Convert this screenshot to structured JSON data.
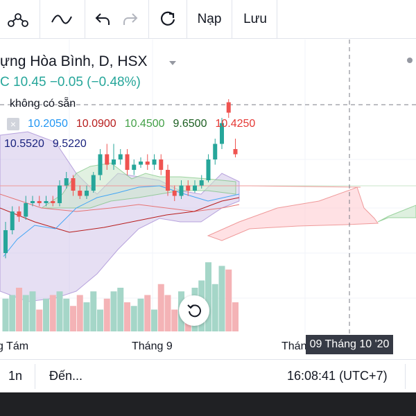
{
  "toolbar": {
    "items": [
      {
        "name": "indicators-icon"
      },
      {
        "name": "drawing-wave-icon"
      },
      {
        "name": "undo-icon"
      },
      {
        "name": "redo-icon"
      },
      {
        "name": "refresh-icon"
      }
    ],
    "load_label": "Nạp",
    "save_label": "Lưu"
  },
  "legend": {
    "title": "ựng Hòa Bình, D, HSX",
    "price_row": "C 10.45  −0.05 (−0.48%)",
    "unavailable": "không có sẵn",
    "row1": [
      {
        "value": "10.2050",
        "color": "#2196f3"
      },
      {
        "value": "10.0900",
        "color": "#b71c1c"
      },
      {
        "value": "10.4500",
        "color": "#43a047"
      },
      {
        "value": "9.6500",
        "color": "#1b5e20"
      },
      {
        "value": "10.4250",
        "color": "#e53935"
      }
    ],
    "row2": [
      {
        "value": "10.5520",
        "color": "#1a237e"
      },
      {
        "value": "9.5220",
        "color": "#1a237e"
      }
    ]
  },
  "time_axis": {
    "labels": [
      "g Tám",
      "Tháng 9",
      "Thán"
    ],
    "crosshair_label": "09 Tháng 10 '20"
  },
  "bottom_bar": {
    "interval": "1n",
    "goto": "Đến...",
    "clock": "16:08:41 (UTC+7)"
  },
  "colors": {
    "up": "#26a69a",
    "down": "#ef5350",
    "volume_up": "#a5d6c8",
    "volume_down": "#f4b3b6",
    "bollinger_fill": "#d1c4e9"
  },
  "chart_data": {
    "type": "candlestick",
    "candles": [
      {
        "o": 9.5,
        "c": 9.72,
        "h": 9.8,
        "l": 9.45
      },
      {
        "o": 9.72,
        "c": 9.9,
        "h": 9.95,
        "l": 9.68
      },
      {
        "o": 9.9,
        "c": 9.85,
        "h": 9.95,
        "l": 9.8
      },
      {
        "o": 9.85,
        "c": 9.98,
        "h": 10.05,
        "l": 9.82
      },
      {
        "o": 9.98,
        "c": 10.0,
        "h": 10.05,
        "l": 9.95
      },
      {
        "o": 10.0,
        "c": 9.98,
        "h": 10.05,
        "l": 9.95
      },
      {
        "o": 9.98,
        "c": 10.0,
        "h": 10.05,
        "l": 9.95
      },
      {
        "o": 10.0,
        "c": 9.98,
        "h": 10.05,
        "l": 9.95
      },
      {
        "o": 9.98,
        "c": 10.15,
        "h": 10.2,
        "l": 9.95
      },
      {
        "o": 10.15,
        "c": 10.22,
        "h": 10.28,
        "l": 10.12
      },
      {
        "o": 10.22,
        "c": 10.1,
        "h": 10.25,
        "l": 10.05
      },
      {
        "o": 10.1,
        "c": 10.05,
        "h": 10.15,
        "l": 10.02
      },
      {
        "o": 10.05,
        "c": 10.1,
        "h": 10.15,
        "l": 10.02
      },
      {
        "o": 10.1,
        "c": 10.25,
        "h": 10.28,
        "l": 10.08
      },
      {
        "o": 10.25,
        "c": 10.45,
        "h": 10.5,
        "l": 10.2
      },
      {
        "o": 10.45,
        "c": 10.35,
        "h": 10.55,
        "l": 10.3
      },
      {
        "o": 10.35,
        "c": 10.4,
        "h": 10.55,
        "l": 10.3
      },
      {
        "o": 10.4,
        "c": 10.45,
        "h": 10.5,
        "l": 10.35
      },
      {
        "o": 10.45,
        "c": 10.3,
        "h": 10.5,
        "l": 10.25
      },
      {
        "o": 10.3,
        "c": 10.35,
        "h": 10.4,
        "l": 10.25
      },
      {
        "o": 10.35,
        "c": 10.38,
        "h": 10.42,
        "l": 10.32
      },
      {
        "o": 10.38,
        "c": 10.35,
        "h": 10.45,
        "l": 10.3
      },
      {
        "o": 10.35,
        "c": 10.4,
        "h": 10.45,
        "l": 10.3
      },
      {
        "o": 10.4,
        "c": 10.3,
        "h": 10.45,
        "l": 10.25
      },
      {
        "o": 10.3,
        "c": 10.1,
        "h": 10.35,
        "l": 10.05
      },
      {
        "o": 10.1,
        "c": 10.05,
        "h": 10.15,
        "l": 10.0
      },
      {
        "o": 10.05,
        "c": 10.15,
        "h": 10.2,
        "l": 10.02
      },
      {
        "o": 10.15,
        "c": 10.1,
        "h": 10.2,
        "l": 10.05
      },
      {
        "o": 10.1,
        "c": 10.15,
        "h": 10.2,
        "l": 10.08
      },
      {
        "o": 10.15,
        "c": 10.2,
        "h": 10.25,
        "l": 10.12
      },
      {
        "o": 10.2,
        "c": 10.4,
        "h": 10.45,
        "l": 10.18
      },
      {
        "o": 10.4,
        "c": 10.55,
        "h": 10.6,
        "l": 10.35
      },
      {
        "o": 10.55,
        "c": 10.75,
        "h": 10.8,
        "l": 10.5
      },
      {
        "o": 10.95,
        "c": 10.85,
        "h": 10.98,
        "l": 10.8
      },
      {
        "o": 10.5,
        "c": 10.45,
        "h": 10.6,
        "l": 10.42
      }
    ],
    "volumes": [
      0.45,
      0.5,
      0.6,
      0.5,
      0.55,
      0.3,
      0.45,
      0.5,
      0.55,
      0.45,
      0.35,
      0.5,
      0.4,
      0.55,
      0.3,
      0.45,
      0.55,
      0.6,
      0.4,
      0.35,
      0.45,
      0.5,
      0.3,
      0.65,
      0.5,
      0.3,
      0.55,
      0.35,
      0.6,
      0.7,
      0.95,
      0.65,
      0.9,
      0.85,
      0.4
    ],
    "last_price": 10.45,
    "xlabels": [
      "g Tám",
      "Tháng 9",
      "Thán"
    ]
  }
}
